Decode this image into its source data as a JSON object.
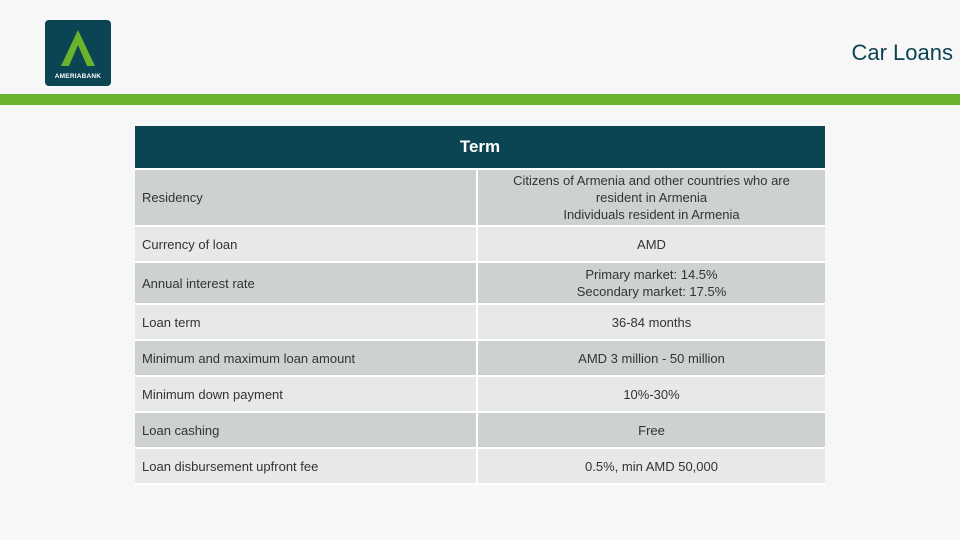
{
  "logo": {
    "text": "AMERIABANK"
  },
  "page_title": "Car Loans",
  "colors": {
    "brand_dark": "#0b4452",
    "accent_green": "#6ab42d",
    "row_dark": "#ced1d2",
    "row_light": "#e7e8e8"
  },
  "table": {
    "header": "Term",
    "rows": [
      {
        "label": "Residency",
        "value": "Citizens of Armenia and other countries who are\nresident in Armenia\nIndividuals resident in Armenia"
      },
      {
        "label": "Currency of loan",
        "value": "AMD"
      },
      {
        "label": "Annual interest rate",
        "value": "Primary market: 14.5%\nSecondary market: 17.5%"
      },
      {
        "label": "Loan term",
        "value": "36-84 months"
      },
      {
        "label": "Minimum and maximum loan amount",
        "value": "AMD 3 million - 50 million"
      },
      {
        "label": "Minimum down payment",
        "value": "10%-30%"
      },
      {
        "label": "Loan cashing",
        "value": "Free"
      },
      {
        "label": "Loan disbursement upfront fee",
        "value": "0.5%, min AMD 50,000"
      }
    ]
  }
}
